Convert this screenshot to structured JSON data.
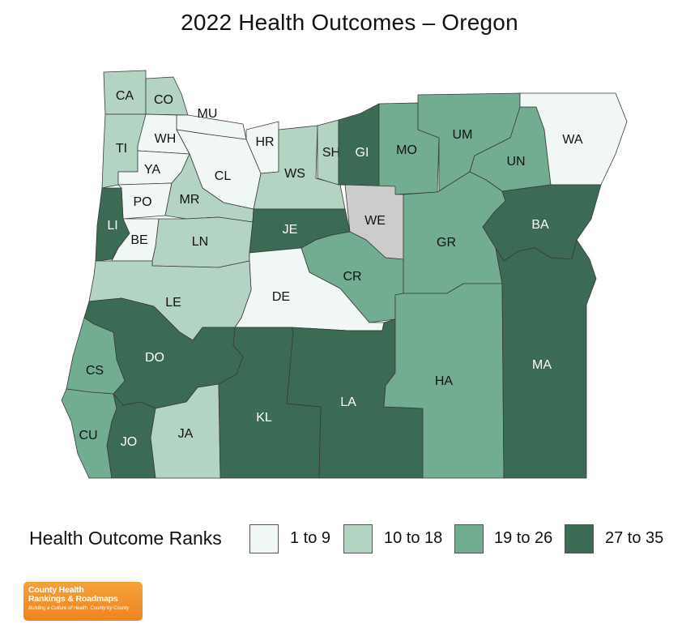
{
  "title": "2022 Health Outcomes – Oregon",
  "state": "Oregon",
  "year": "2022",
  "measure": "Health Outcomes",
  "legend": {
    "title": "Health Outcome Ranks",
    "bins": [
      {
        "label": "1 to 9",
        "color": "#f1f7f4"
      },
      {
        "label": "10 to 18",
        "color": "#b3d3c3"
      },
      {
        "label": "19 to 26",
        "color": "#72ad92"
      },
      {
        "label": "27 to 35",
        "color": "#3b6a55"
      }
    ],
    "no_data_color": "#cccccc"
  },
  "counties": [
    {
      "abbr": "CA",
      "bin": 1
    },
    {
      "abbr": "CO",
      "bin": 1
    },
    {
      "abbr": "MU",
      "bin": 0
    },
    {
      "abbr": "HR",
      "bin": 0
    },
    {
      "abbr": "WS",
      "bin": 1
    },
    {
      "abbr": "SH",
      "bin": 1
    },
    {
      "abbr": "GI",
      "bin": 3
    },
    {
      "abbr": "MO",
      "bin": 2
    },
    {
      "abbr": "UM",
      "bin": 2
    },
    {
      "abbr": "UN",
      "bin": 2
    },
    {
      "abbr": "WA",
      "bin": 0
    },
    {
      "abbr": "TI",
      "bin": 1
    },
    {
      "abbr": "WH",
      "bin": 0
    },
    {
      "abbr": "YA",
      "bin": 0
    },
    {
      "abbr": "CL",
      "bin": 0
    },
    {
      "abbr": "PO",
      "bin": 0
    },
    {
      "abbr": "MR",
      "bin": 1
    },
    {
      "abbr": "LI",
      "bin": 3
    },
    {
      "abbr": "BE",
      "bin": 0
    },
    {
      "abbr": "LN",
      "bin": 1
    },
    {
      "abbr": "JE",
      "bin": 3
    },
    {
      "abbr": "WE",
      "bin": null
    },
    {
      "abbr": "GR",
      "bin": 2
    },
    {
      "abbr": "BA",
      "bin": 3
    },
    {
      "abbr": "CR",
      "bin": 2
    },
    {
      "abbr": "DE",
      "bin": 0
    },
    {
      "abbr": "LE",
      "bin": 1
    },
    {
      "abbr": "DO",
      "bin": 3
    },
    {
      "abbr": "CS",
      "bin": 2
    },
    {
      "abbr": "CU",
      "bin": 2
    },
    {
      "abbr": "JO",
      "bin": 3
    },
    {
      "abbr": "JA",
      "bin": 1
    },
    {
      "abbr": "KL",
      "bin": 3
    },
    {
      "abbr": "LA",
      "bin": 3
    },
    {
      "abbr": "HA",
      "bin": 2
    },
    {
      "abbr": "MA",
      "bin": 3
    }
  ],
  "logo": {
    "line1": "County Health",
    "line2": "Rankings & Roadmaps",
    "tagline": "Building a Culture of Health, County by County"
  }
}
